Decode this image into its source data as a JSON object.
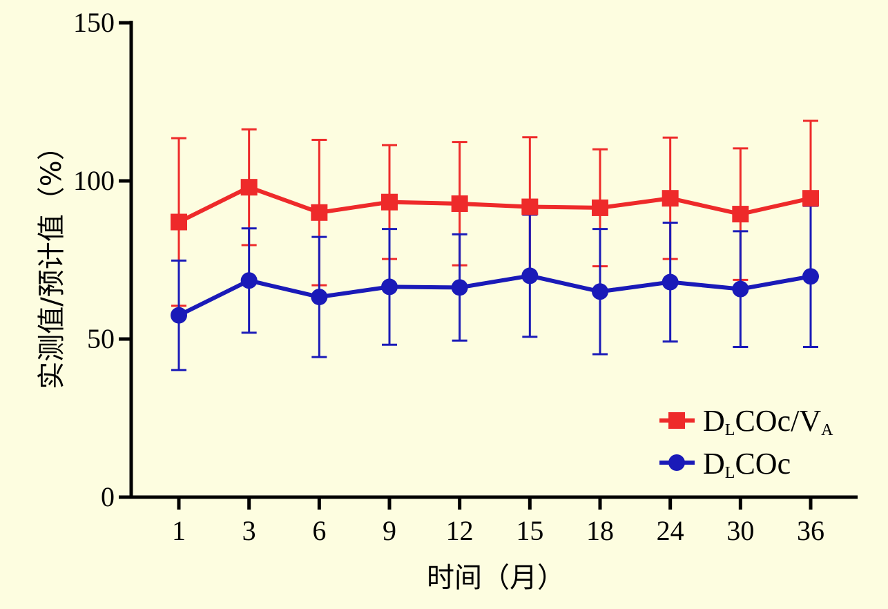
{
  "chart_data": {
    "type": "line",
    "categories": [
      "1",
      "3",
      "6",
      "9",
      "12",
      "15",
      "18",
      "24",
      "30",
      "36"
    ],
    "xlabel": "时间（月）",
    "ylabel": "实测值/预计值（%）",
    "ylim": [
      0,
      150
    ],
    "yticks": [
      "0",
      "50",
      "100",
      "150"
    ],
    "grid": false,
    "legend_position": "bottom-right",
    "series": [
      {
        "name_main": "D",
        "name_sub1": "L",
        "name_mid": "COc/V",
        "name_sub2": "A",
        "color": "#ee2a2a",
        "marker": "square",
        "values": [
          87,
          98,
          90,
          93.3,
          92.8,
          91.8,
          91.5,
          94.5,
          89.5,
          94.5
        ],
        "error": [
          26.5,
          18.3,
          23,
          18,
          19.5,
          22,
          18.5,
          19.2,
          20.8,
          24.5
        ]
      },
      {
        "name_main": "D",
        "name_sub1": "L",
        "name_mid": "COc",
        "name_sub2": "",
        "color": "#1a1ab8",
        "marker": "circle",
        "values": [
          57.5,
          68.5,
          63.3,
          66.5,
          66.3,
          70,
          65,
          68,
          65.8,
          69.8
        ],
        "error": [
          17.3,
          16.5,
          19,
          18.3,
          16.8,
          19.3,
          19.8,
          18.8,
          18.3,
          22.3
        ]
      }
    ]
  }
}
